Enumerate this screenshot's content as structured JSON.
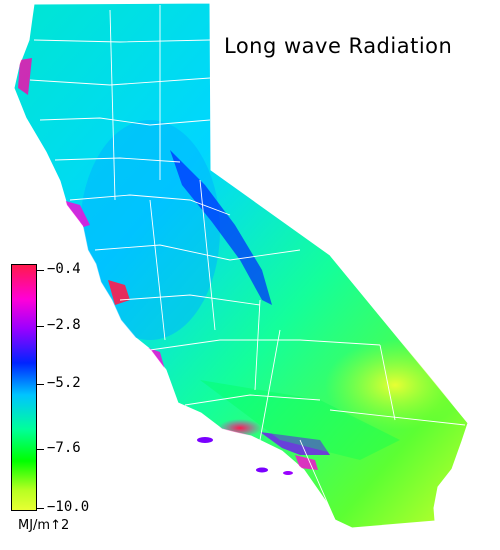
{
  "map": {
    "title": "Long wave Radiation",
    "region": "California",
    "boundaries": "county lines"
  },
  "legend": {
    "ticks": [
      {
        "label": "−0.4",
        "color": "#ff1a4b"
      },
      {
        "label": "−2.8",
        "color": "#ff00d8"
      },
      {
        "label": "−5.2",
        "color": "#0060ff"
      },
      {
        "label": "−7.6",
        "color": "#00ff44"
      },
      {
        "label": "−10.0",
        "color": "#e8ff33"
      }
    ],
    "unit": "MJ/m↑2"
  }
}
